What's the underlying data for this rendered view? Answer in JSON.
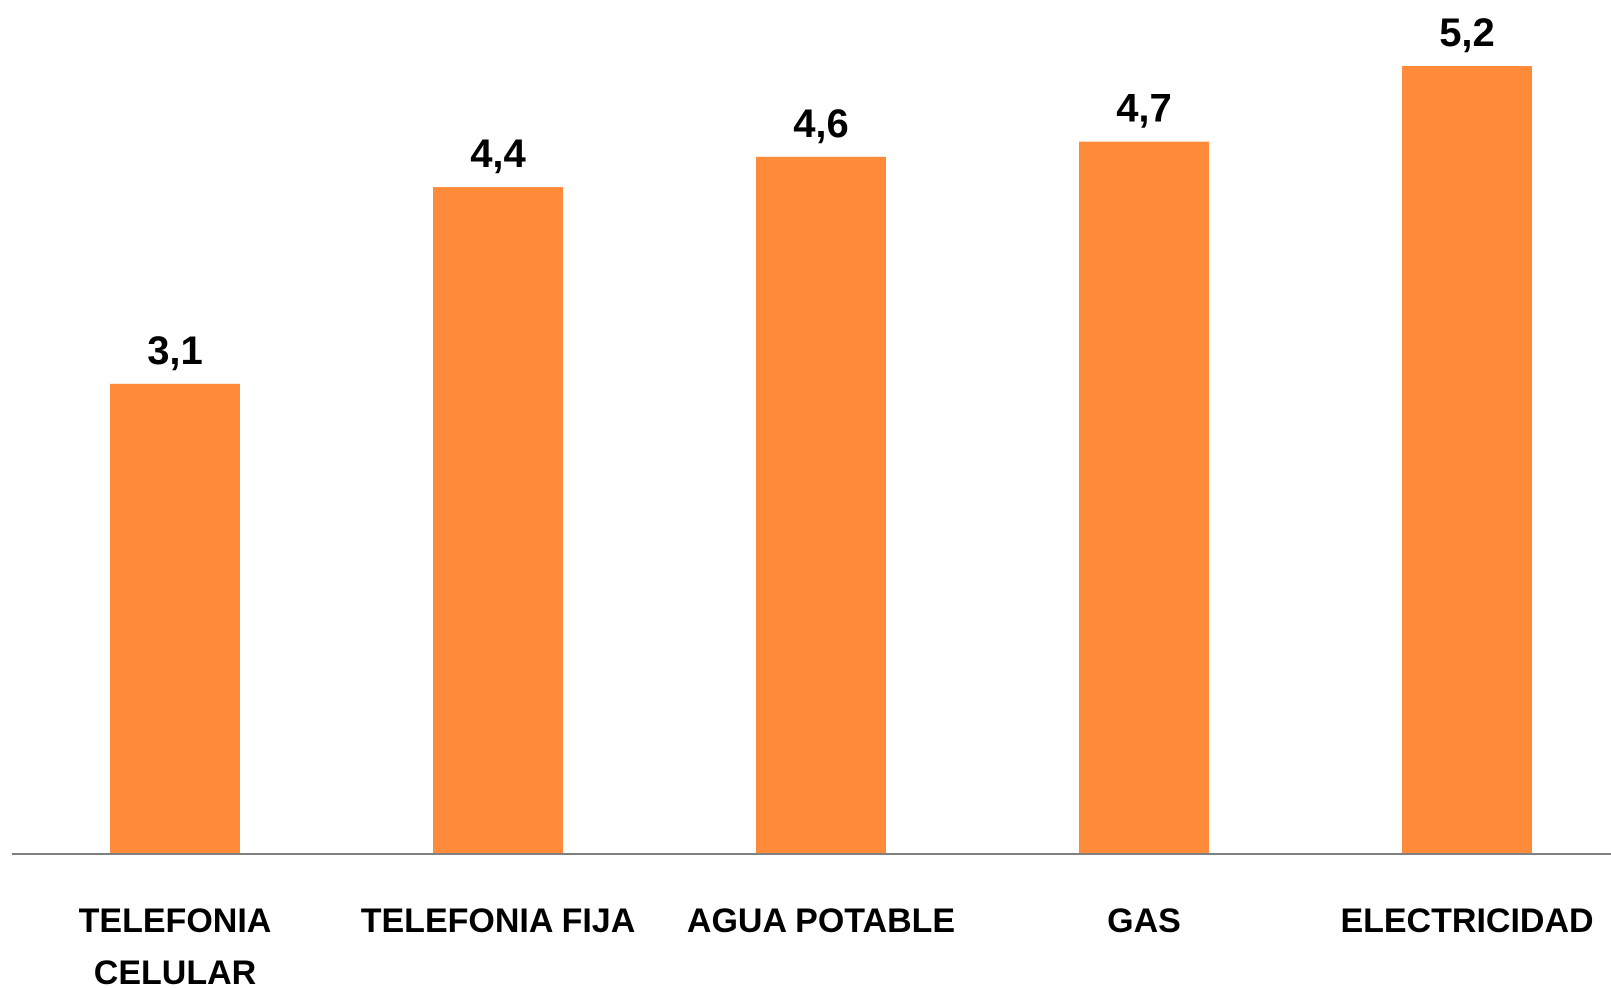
{
  "chart_data": {
    "type": "bar",
    "categories": [
      [
        "TELEFONIA",
        "CELULAR"
      ],
      [
        "TELEFONIA FIJA"
      ],
      [
        "AGUA POTABLE"
      ],
      [
        "GAS"
      ],
      [
        "ELECTRICIDAD"
      ]
    ],
    "values": [
      3.1,
      4.4,
      4.6,
      4.7,
      5.2
    ],
    "data_labels": [
      "3,1",
      "4,4",
      "4,6",
      "4,7",
      "5,2"
    ],
    "ylim": [
      0,
      5.2
    ],
    "grid": false,
    "legend": "none",
    "colors": {
      "bar": "#FF8A3A",
      "axis": "#808080",
      "text": "#000000"
    }
  }
}
